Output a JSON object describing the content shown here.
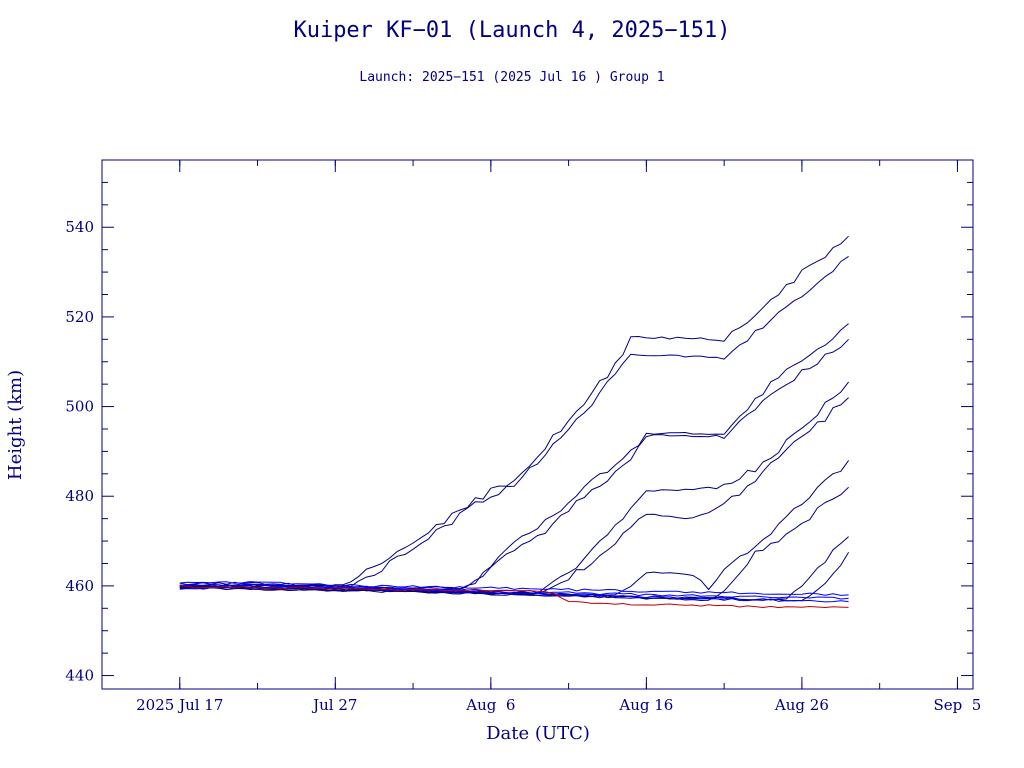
{
  "chart_data": {
    "type": "line",
    "title": "Kuiper KF−01 (Launch 4, 2025−151)",
    "subtitle": "Launch: 2025−151  (2025 Jul 16 )  Group 1",
    "xlabel": "Date (UTC)",
    "ylabel": "Height (km)",
    "xlim": [
      "2025-07-12",
      "2025-09-06"
    ],
    "ylim": [
      437,
      555
    ],
    "grid": false,
    "x_ticks": [
      {
        "date": "2025-07-17",
        "label": "2025 Jul 17"
      },
      {
        "date": "2025-07-27",
        "label": "Jul 27"
      },
      {
        "date": "2025-08-06",
        "label": "Aug  6"
      },
      {
        "date": "2025-08-16",
        "label": "Aug 16"
      },
      {
        "date": "2025-08-26",
        "label": "Aug 26"
      },
      {
        "date": "2025-09-05",
        "label": "Sep  5"
      }
    ],
    "y_ticks": [
      440,
      460,
      480,
      500,
      520,
      540
    ],
    "colors": {
      "axis": "#000080",
      "series_main": "#000080",
      "series_bright": "#0000ff",
      "series_red": "#c00000"
    },
    "series": [
      {
        "color": "#000080",
        "x": [
          "2025-07-17",
          "2025-07-22",
          "2025-07-27",
          "2025-07-28",
          "2025-07-30",
          "2025-08-02",
          "2025-08-05",
          "2025-08-08",
          "2025-08-11",
          "2025-08-14",
          "2025-08-15",
          "2025-08-21",
          "2025-08-25",
          "2025-08-29"
        ],
        "y": [
          460.5,
          460.6,
          460.0,
          461.0,
          465.0,
          472.0,
          479.0,
          485.0,
          497.0,
          509.0,
          515.5,
          515.0,
          527.0,
          538.0
        ]
      },
      {
        "color": "#000080",
        "x": [
          "2025-07-17",
          "2025-07-22",
          "2025-07-27",
          "2025-07-28",
          "2025-07-30",
          "2025-08-02",
          "2025-08-05",
          "2025-08-08",
          "2025-08-11",
          "2025-08-14",
          "2025-08-15",
          "2025-08-21",
          "2025-08-25",
          "2025-08-29"
        ],
        "y": [
          460.0,
          460.2,
          459.8,
          460.5,
          464.0,
          471.0,
          478.0,
          484.0,
          495.0,
          507.0,
          511.5,
          511.0,
          522.0,
          533.5
        ]
      },
      {
        "color": "#000080",
        "x": [
          "2025-07-17",
          "2025-07-24",
          "2025-08-04",
          "2025-08-05",
          "2025-08-06",
          "2025-08-09",
          "2025-08-12",
          "2025-08-15",
          "2025-08-16",
          "2025-08-21",
          "2025-08-24",
          "2025-08-29"
        ],
        "y": [
          460.2,
          460.0,
          459.5,
          461.0,
          465.0,
          473.0,
          482.0,
          490.0,
          494.0,
          494.0,
          505.0,
          518.5
        ]
      },
      {
        "color": "#000080",
        "x": [
          "2025-07-17",
          "2025-07-24",
          "2025-08-04",
          "2025-08-05",
          "2025-08-06",
          "2025-08-09",
          "2025-08-12",
          "2025-08-15",
          "2025-08-16",
          "2025-08-21",
          "2025-08-24",
          "2025-08-29"
        ],
        "y": [
          459.8,
          459.7,
          459.2,
          460.5,
          464.0,
          471.0,
          480.0,
          488.0,
          493.5,
          493.5,
          503.0,
          515.0
        ]
      },
      {
        "color": "#000080",
        "x": [
          "2025-07-17",
          "2025-07-27",
          "2025-08-09",
          "2025-08-10",
          "2025-08-12",
          "2025-08-14",
          "2025-08-16",
          "2025-08-21",
          "2025-08-23",
          "2025-08-26",
          "2025-08-29"
        ],
        "y": [
          460.0,
          459.5,
          458.5,
          461.0,
          466.0,
          473.0,
          481.0,
          482.0,
          486.0,
          495.0,
          505.5
        ]
      },
      {
        "color": "#000080",
        "x": [
          "2025-07-17",
          "2025-07-27",
          "2025-08-09",
          "2025-08-10",
          "2025-08-12",
          "2025-08-14",
          "2025-08-16",
          "2025-08-19",
          "2025-08-21",
          "2025-08-23",
          "2025-08-26",
          "2025-08-29"
        ],
        "y": [
          459.7,
          459.2,
          458.2,
          460.0,
          464.0,
          470.0,
          476.0,
          475.0,
          478.0,
          484.0,
          493.0,
          502.0
        ]
      },
      {
        "color": "#000080",
        "x": [
          "2025-07-17",
          "2025-07-27",
          "2025-08-14",
          "2025-08-15",
          "2025-08-16",
          "2025-08-19",
          "2025-08-20",
          "2025-08-22",
          "2025-08-24",
          "2025-08-26",
          "2025-08-29"
        ],
        "y": [
          459.9,
          459.4,
          457.8,
          460.0,
          463.0,
          462.5,
          460.0,
          466.0,
          472.0,
          478.0,
          488.0
        ]
      },
      {
        "color": "#000080",
        "x": [
          "2025-07-17",
          "2025-07-27",
          "2025-08-14",
          "2025-08-16",
          "2025-08-20",
          "2025-08-21",
          "2025-08-23",
          "2025-08-26",
          "2025-08-29"
        ],
        "y": [
          459.6,
          459.1,
          457.5,
          457.2,
          456.8,
          459.0,
          467.0,
          474.0,
          482.0
        ]
      },
      {
        "color": "#000080",
        "x": [
          "2025-07-17",
          "2025-07-27",
          "2025-08-16",
          "2025-08-25",
          "2025-08-26",
          "2025-08-27",
          "2025-08-28",
          "2025-08-29"
        ],
        "y": [
          459.8,
          459.3,
          457.6,
          457.0,
          460.0,
          464.0,
          468.0,
          471.0
        ]
      },
      {
        "color": "#000080",
        "x": [
          "2025-07-17",
          "2025-07-27",
          "2025-08-16",
          "2025-08-26",
          "2025-08-27",
          "2025-08-28",
          "2025-08-29"
        ],
        "y": [
          459.5,
          459.0,
          457.4,
          456.7,
          459.0,
          462.0,
          467.5
        ]
      },
      {
        "color": "#0000ff",
        "x": [
          "2025-07-17",
          "2025-07-22",
          "2025-07-27",
          "2025-08-06",
          "2025-08-16",
          "2025-08-26",
          "2025-08-29"
        ],
        "y": [
          460.6,
          460.8,
          460.2,
          459.5,
          458.8,
          458.2,
          458.0
        ]
      },
      {
        "color": "#0000ff",
        "x": [
          "2025-07-17",
          "2025-07-22",
          "2025-07-27",
          "2025-08-06",
          "2025-08-16",
          "2025-08-26",
          "2025-08-29"
        ],
        "y": [
          460.0,
          460.3,
          459.8,
          459.0,
          458.0,
          457.4,
          457.2
        ]
      },
      {
        "color": "#0000ff",
        "x": [
          "2025-07-17",
          "2025-07-22",
          "2025-07-27",
          "2025-08-06",
          "2025-08-16",
          "2025-08-26",
          "2025-08-29"
        ],
        "y": [
          459.5,
          459.9,
          459.5,
          458.6,
          457.5,
          456.8,
          456.5
        ]
      },
      {
        "color": "#c00000",
        "x": [
          "2025-07-17",
          "2025-07-27",
          "2025-08-06",
          "2025-08-10",
          "2025-08-11",
          "2025-08-16",
          "2025-08-26",
          "2025-08-29"
        ],
        "y": [
          459.8,
          459.4,
          459.0,
          458.6,
          456.5,
          455.8,
          455.3,
          455.2
        ]
      }
    ]
  }
}
